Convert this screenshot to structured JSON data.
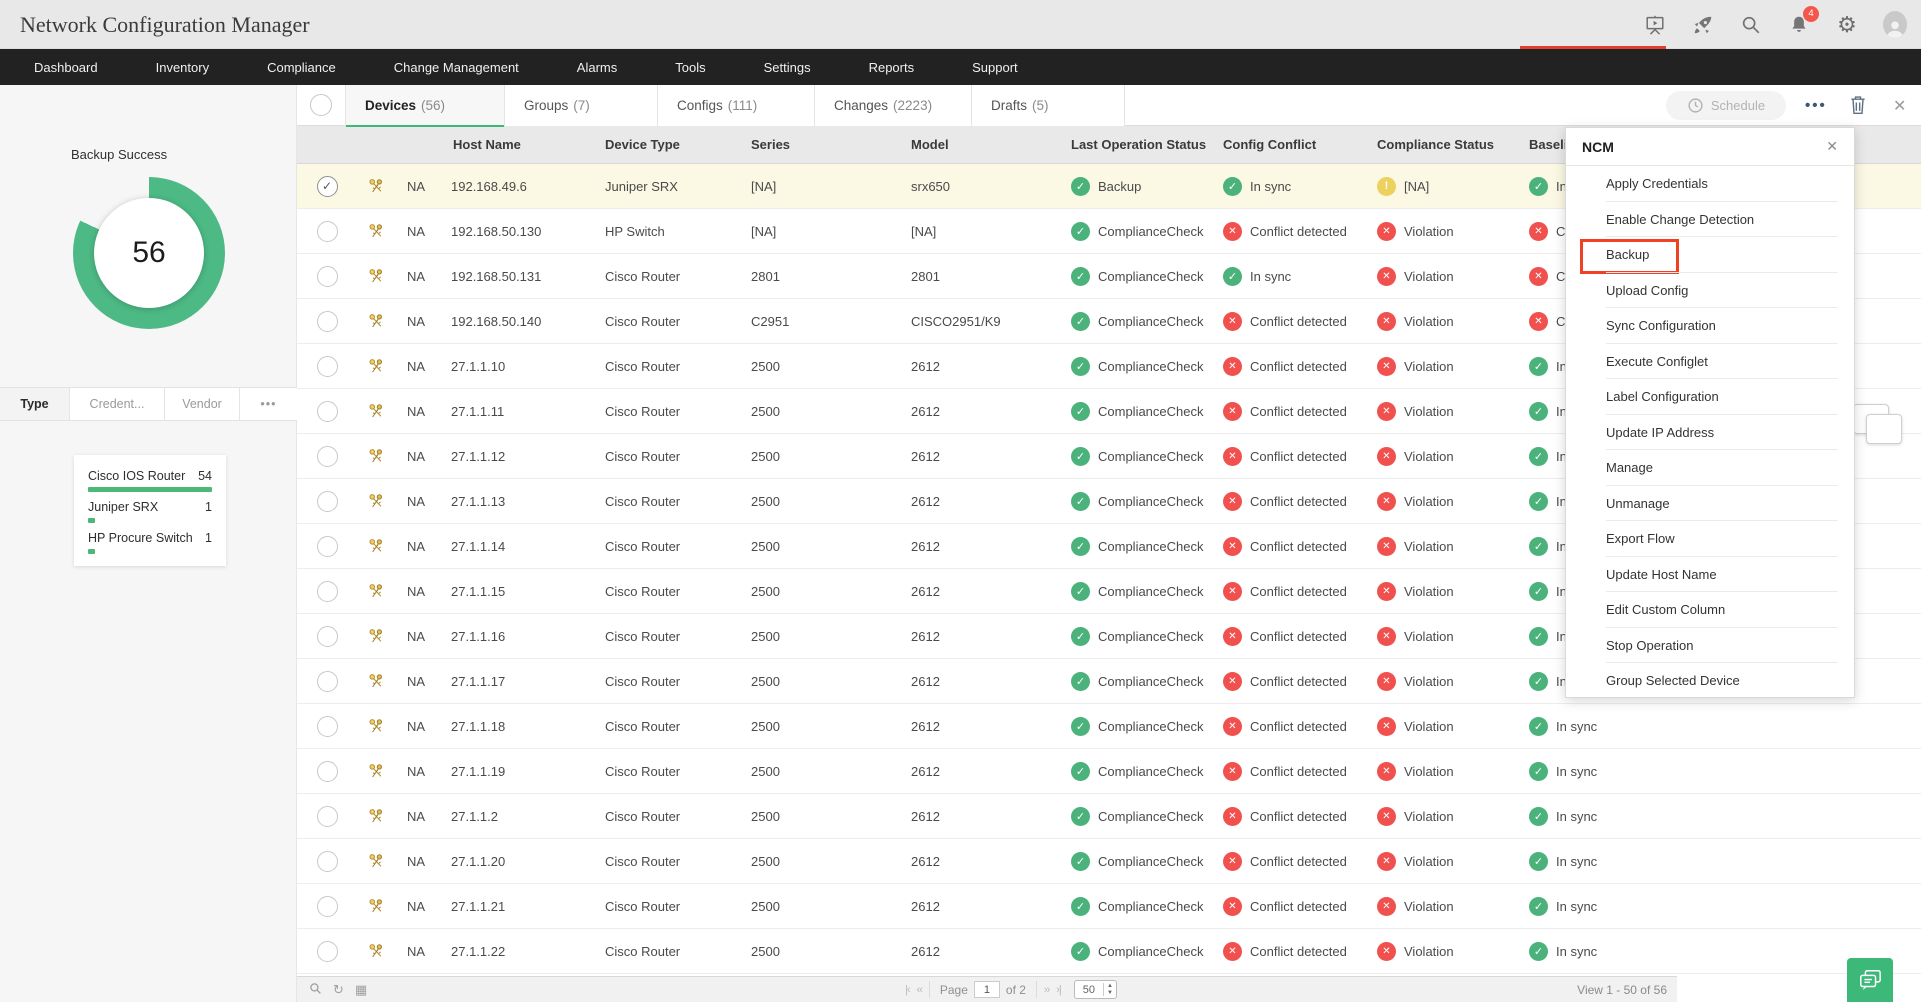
{
  "header": {
    "title": "Network Configuration Manager",
    "notification_count": "4"
  },
  "nav": {
    "items": [
      "Dashboard",
      "Inventory",
      "Compliance",
      "Change Management",
      "Alarms",
      "Tools",
      "Settings",
      "Reports",
      "Support"
    ]
  },
  "toolbar": {
    "schedule_label": "Schedule",
    "more_label": "•••"
  },
  "tabs": [
    {
      "label": "Devices",
      "count": "(56)",
      "active": true
    },
    {
      "label": "Groups",
      "count": "(7)"
    },
    {
      "label": "Configs",
      "count": "(111)"
    },
    {
      "label": "Changes",
      "count": "(2223)"
    },
    {
      "label": "Drafts",
      "count": "(5)"
    }
  ],
  "sidebar": {
    "chart": {
      "label": "Backup Success",
      "value": "56",
      "percent": 82,
      "color": "#4dba85"
    },
    "tabs": [
      {
        "label": "Type",
        "active": true
      },
      {
        "label": "Credent..."
      },
      {
        "label": "Vendor"
      },
      {
        "label": "•••"
      }
    ],
    "device_types": [
      {
        "name": "Cisco IOS Router",
        "count": "54",
        "bar_pct": 100
      },
      {
        "name": "Juniper SRX",
        "count": "1",
        "bar_pct": 6
      },
      {
        "name": "HP Procure Switch",
        "count": "1",
        "bar_pct": 6
      }
    ]
  },
  "table": {
    "columns": [
      "Host Name",
      "Device Type",
      "Series",
      "Model",
      "Last Operation Status",
      "Config Conflict",
      "Compliance Status",
      "Baseline"
    ],
    "rows": [
      {
        "selected": true,
        "na": "NA",
        "host": "192.168.49.6",
        "device_type": "Juniper SRX",
        "series": "[NA]",
        "model": "srx650",
        "last_op": {
          "icon": "check",
          "text": "Backup"
        },
        "conflict": {
          "icon": "check",
          "text": "In sync"
        },
        "compliance": {
          "icon": "warn",
          "text": "[NA]"
        },
        "baseline": {
          "icon": "check",
          "text": "In sync"
        }
      },
      {
        "na": "NA",
        "host": "192.168.50.130",
        "device_type": "HP Switch",
        "series": "[NA]",
        "model": "[NA]",
        "last_op": {
          "icon": "check",
          "text": "ComplianceCheck"
        },
        "conflict": {
          "icon": "cross",
          "text": "Conflict detected"
        },
        "compliance": {
          "icon": "cross",
          "text": "Violation"
        },
        "baseline": {
          "icon": "cross",
          "text": "Conflict detected"
        }
      },
      {
        "na": "NA",
        "host": "192.168.50.131",
        "device_type": "Cisco Router",
        "series": "2801",
        "model": "2801",
        "last_op": {
          "icon": "check",
          "text": "ComplianceCheck"
        },
        "conflict": {
          "icon": "check",
          "text": "In sync"
        },
        "compliance": {
          "icon": "cross",
          "text": "Violation"
        },
        "baseline": {
          "icon": "cross",
          "text": "Conflict detected"
        }
      },
      {
        "na": "NA",
        "host": "192.168.50.140",
        "device_type": "Cisco Router",
        "series": "C2951",
        "model": "CISCO2951/K9",
        "last_op": {
          "icon": "check",
          "text": "ComplianceCheck"
        },
        "conflict": {
          "icon": "cross",
          "text": "Conflict detected"
        },
        "compliance": {
          "icon": "cross",
          "text": "Violation"
        },
        "baseline": {
          "icon": "cross",
          "text": "Conflict detected"
        }
      },
      {
        "na": "NA",
        "host": "27.1.1.10",
        "device_type": "Cisco Router",
        "series": "2500",
        "model": "2612",
        "last_op": {
          "icon": "check",
          "text": "ComplianceCheck"
        },
        "conflict": {
          "icon": "cross",
          "text": "Conflict detected"
        },
        "compliance": {
          "icon": "cross",
          "text": "Violation"
        },
        "baseline": {
          "icon": "check",
          "text": "In sync"
        }
      },
      {
        "na": "NA",
        "host": "27.1.1.11",
        "device_type": "Cisco Router",
        "series": "2500",
        "model": "2612",
        "last_op": {
          "icon": "check",
          "text": "ComplianceCheck"
        },
        "conflict": {
          "icon": "cross",
          "text": "Conflict detected"
        },
        "compliance": {
          "icon": "cross",
          "text": "Violation"
        },
        "baseline": {
          "icon": "check",
          "text": "In sync"
        }
      },
      {
        "na": "NA",
        "host": "27.1.1.12",
        "device_type": "Cisco Router",
        "series": "2500",
        "model": "2612",
        "last_op": {
          "icon": "check",
          "text": "ComplianceCheck"
        },
        "conflict": {
          "icon": "cross",
          "text": "Conflict detected"
        },
        "compliance": {
          "icon": "cross",
          "text": "Violation"
        },
        "baseline": {
          "icon": "check",
          "text": "In sync"
        }
      },
      {
        "na": "NA",
        "host": "27.1.1.13",
        "device_type": "Cisco Router",
        "series": "2500",
        "model": "2612",
        "last_op": {
          "icon": "check",
          "text": "ComplianceCheck"
        },
        "conflict": {
          "icon": "cross",
          "text": "Conflict detected"
        },
        "compliance": {
          "icon": "cross",
          "text": "Violation"
        },
        "baseline": {
          "icon": "check",
          "text": "In sync"
        }
      },
      {
        "na": "NA",
        "host": "27.1.1.14",
        "device_type": "Cisco Router",
        "series": "2500",
        "model": "2612",
        "last_op": {
          "icon": "check",
          "text": "ComplianceCheck"
        },
        "conflict": {
          "icon": "cross",
          "text": "Conflict detected"
        },
        "compliance": {
          "icon": "cross",
          "text": "Violation"
        },
        "baseline": {
          "icon": "check",
          "text": "In sync"
        }
      },
      {
        "na": "NA",
        "host": "27.1.1.15",
        "device_type": "Cisco Router",
        "series": "2500",
        "model": "2612",
        "last_op": {
          "icon": "check",
          "text": "ComplianceCheck"
        },
        "conflict": {
          "icon": "cross",
          "text": "Conflict detected"
        },
        "compliance": {
          "icon": "cross",
          "text": "Violation"
        },
        "baseline": {
          "icon": "check",
          "text": "In sync"
        }
      },
      {
        "na": "NA",
        "host": "27.1.1.16",
        "device_type": "Cisco Router",
        "series": "2500",
        "model": "2612",
        "last_op": {
          "icon": "check",
          "text": "ComplianceCheck"
        },
        "conflict": {
          "icon": "cross",
          "text": "Conflict detected"
        },
        "compliance": {
          "icon": "cross",
          "text": "Violation"
        },
        "baseline": {
          "icon": "check",
          "text": "In sync"
        }
      },
      {
        "na": "NA",
        "host": "27.1.1.17",
        "device_type": "Cisco Router",
        "series": "2500",
        "model": "2612",
        "last_op": {
          "icon": "check",
          "text": "ComplianceCheck"
        },
        "conflict": {
          "icon": "cross",
          "text": "Conflict detected"
        },
        "compliance": {
          "icon": "cross",
          "text": "Violation"
        },
        "baseline": {
          "icon": "check",
          "text": "In sync"
        }
      },
      {
        "na": "NA",
        "host": "27.1.1.18",
        "device_type": "Cisco Router",
        "series": "2500",
        "model": "2612",
        "last_op": {
          "icon": "check",
          "text": "ComplianceCheck"
        },
        "conflict": {
          "icon": "cross",
          "text": "Conflict detected"
        },
        "compliance": {
          "icon": "cross",
          "text": "Violation"
        },
        "baseline": {
          "icon": "check",
          "text": "In sync"
        }
      },
      {
        "na": "NA",
        "host": "27.1.1.19",
        "device_type": "Cisco Router",
        "series": "2500",
        "model": "2612",
        "last_op": {
          "icon": "check",
          "text": "ComplianceCheck"
        },
        "conflict": {
          "icon": "cross",
          "text": "Conflict detected"
        },
        "compliance": {
          "icon": "cross",
          "text": "Violation"
        },
        "baseline": {
          "icon": "check",
          "text": "In sync"
        }
      },
      {
        "na": "NA",
        "host": "27.1.1.2",
        "device_type": "Cisco Router",
        "series": "2500",
        "model": "2612",
        "last_op": {
          "icon": "check",
          "text": "ComplianceCheck"
        },
        "conflict": {
          "icon": "cross",
          "text": "Conflict detected"
        },
        "compliance": {
          "icon": "cross",
          "text": "Violation"
        },
        "baseline": {
          "icon": "check",
          "text": "In sync"
        }
      },
      {
        "na": "NA",
        "host": "27.1.1.20",
        "device_type": "Cisco Router",
        "series": "2500",
        "model": "2612",
        "last_op": {
          "icon": "check",
          "text": "ComplianceCheck"
        },
        "conflict": {
          "icon": "cross",
          "text": "Conflict detected"
        },
        "compliance": {
          "icon": "cross",
          "text": "Violation"
        },
        "baseline": {
          "icon": "check",
          "text": "In sync"
        }
      },
      {
        "na": "NA",
        "host": "27.1.1.21",
        "device_type": "Cisco Router",
        "series": "2500",
        "model": "2612",
        "last_op": {
          "icon": "check",
          "text": "ComplianceCheck"
        },
        "conflict": {
          "icon": "cross",
          "text": "Conflict detected"
        },
        "compliance": {
          "icon": "cross",
          "text": "Violation"
        },
        "baseline": {
          "icon": "check",
          "text": "In sync"
        }
      },
      {
        "na": "NA",
        "host": "27.1.1.22",
        "device_type": "Cisco Router",
        "series": "2500",
        "model": "2612",
        "last_op": {
          "icon": "check",
          "text": "ComplianceCheck"
        },
        "conflict": {
          "icon": "cross",
          "text": "Conflict detected"
        },
        "compliance": {
          "icon": "cross",
          "text": "Violation"
        },
        "baseline": {
          "icon": "check",
          "text": "In sync"
        }
      }
    ]
  },
  "menu": {
    "title": "NCM",
    "highlighted": "Backup",
    "items": [
      "Apply Credentials",
      "Enable Change Detection",
      "Backup",
      "Upload Config",
      "Sync Configuration",
      "Execute Configlet",
      "Label Configuration",
      "Update IP Address",
      "Manage",
      "Unmanage",
      "Export Flow",
      "Update Host Name",
      "Edit Custom Column",
      "Stop Operation",
      "Group Selected Device"
    ]
  },
  "footer": {
    "page_label": "Page",
    "page_value": "1",
    "of_label": "of 2",
    "first": "|‹",
    "prev": "‹‹",
    "next": "››",
    "last": "›|",
    "page_size": "50",
    "view_label": "View 1 - 50 of 56"
  }
}
